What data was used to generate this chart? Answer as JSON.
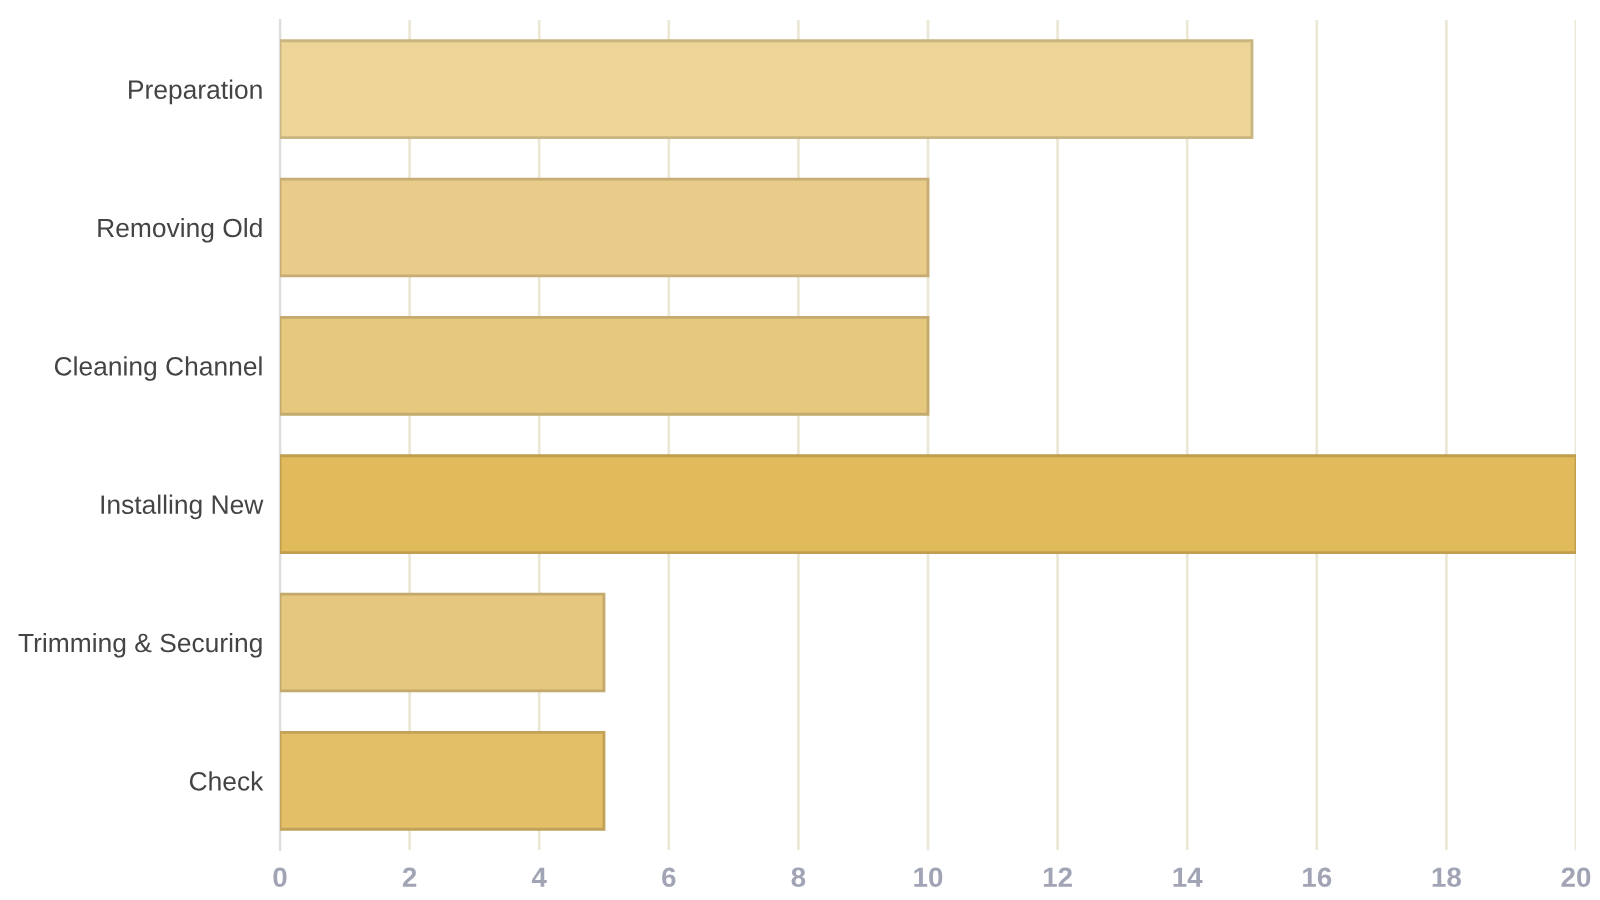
{
  "chart_data": {
    "type": "bar",
    "orientation": "horizontal",
    "categories": [
      "Preparation",
      "Removing Old",
      "Cleaning Channel",
      "Installing New",
      "Trimming & Securing",
      "Check"
    ],
    "values": [
      15,
      10,
      10,
      20,
      5,
      5
    ],
    "colors": [
      "#edd597",
      "#eacc8a",
      "#e7c87f",
      "#e1ba5c",
      "#e6c77f",
      "#e3bf68"
    ],
    "xlim": [
      0,
      20
    ],
    "xticks": [
      0,
      2,
      4,
      6,
      8,
      10,
      12,
      14,
      16,
      18,
      20
    ],
    "grid": "x"
  }
}
